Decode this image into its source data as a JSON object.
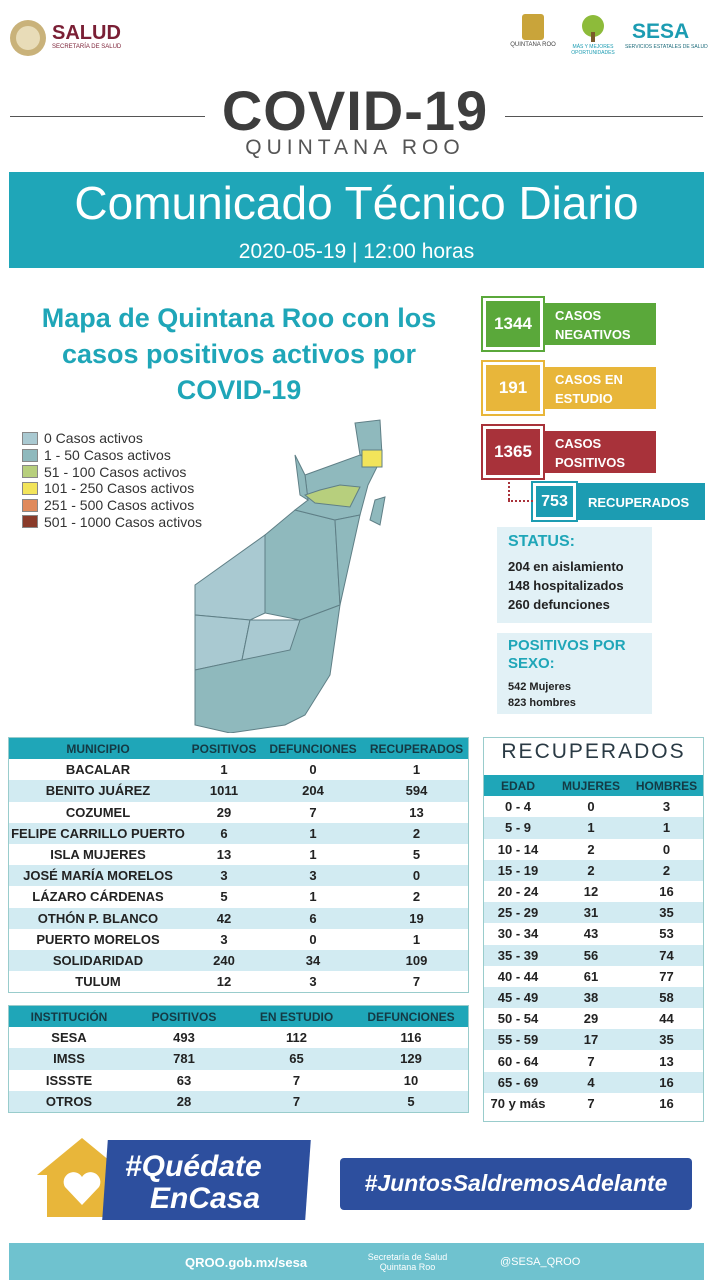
{
  "header": {
    "left_title": "SALUD",
    "left_subtitle": "SECRETARÍA DE SALUD",
    "logo1": "QUINTANA ROO",
    "logo2": "MÁS Y MEJORES OPORTUNIDADES",
    "logo3_title": "SESA",
    "logo3_subtitle": "SERVICIOS ESTATALES DE SALUD"
  },
  "title": "COVID-19",
  "subtitle": "QUINTANA ROO",
  "banner": {
    "title": "Comunicado Técnico Diario",
    "date": "2020-05-19 | 12:00 horas"
  },
  "map": {
    "title": "Mapa de Quintana Roo con los casos positivos activos por COVID-19",
    "legend": [
      {
        "label": "0 Casos activos",
        "color": "#a9c9d1"
      },
      {
        "label": "1 - 50 Casos activos",
        "color": "#8fb9bd"
      },
      {
        "label": "51 - 100 Casos activos",
        "color": "#b7cf7d"
      },
      {
        "label": "101 - 250 Casos activos",
        "color": "#f2e45a"
      },
      {
        "label": "251 - 500 Casos activos",
        "color": "#e08a5c"
      },
      {
        "label": "501 - 1000 Casos activos",
        "color": "#8a3b2a"
      }
    ]
  },
  "stats": [
    {
      "value": 1344,
      "label": "CASOS NEGATIVOS",
      "color": "#5aa83a"
    },
    {
      "value": 191,
      "label": "CASOS EN ESTUDIO",
      "color": "#e8b63a"
    },
    {
      "value": 1365,
      "label": "CASOS POSITIVOS",
      "color": "#a8323a"
    },
    {
      "value": 753,
      "label": "RECUPERADOS",
      "color": "#1c9cb2"
    }
  ],
  "status": {
    "title": "STATUS:",
    "items": [
      "204 en aislamiento",
      "148 hospitalizados",
      "260 defunciones"
    ]
  },
  "sex": {
    "title": "POSITIVOS POR SEXO:",
    "items": [
      "542 Mujeres",
      "823 hombres"
    ]
  },
  "municipios": {
    "header": [
      "MUNICIPIO",
      "POSITIVOS",
      "DEFUNCIONES",
      "RECUPERADOS"
    ],
    "rows": [
      [
        "BACALAR",
        1,
        0,
        1
      ],
      [
        "BENITO JUÁREZ",
        1011,
        204,
        594
      ],
      [
        "COZUMEL",
        29,
        7,
        13
      ],
      [
        "FELIPE CARRILLO PUERTO",
        6,
        1,
        2
      ],
      [
        "ISLA MUJERES",
        13,
        1,
        5
      ],
      [
        "JOSÉ MARÍA MORELOS",
        3,
        3,
        0
      ],
      [
        "LÁZARO CÁRDENAS",
        5,
        1,
        2
      ],
      [
        "OTHÓN P. BLANCO",
        42,
        6,
        19
      ],
      [
        "PUERTO MORELOS",
        3,
        0,
        1
      ],
      [
        "SOLIDARIDAD",
        240,
        34,
        109
      ],
      [
        "TULUM",
        12,
        3,
        7
      ]
    ]
  },
  "instituciones": {
    "header": [
      "INSTITUCIÓN",
      "POSITIVOS",
      "EN ESTUDIO",
      "DEFUNCIONES"
    ],
    "rows": [
      [
        "SESA",
        493,
        112,
        116
      ],
      [
        "IMSS",
        781,
        65,
        129
      ],
      [
        "ISSSTE",
        63,
        7,
        10
      ],
      [
        "OTROS",
        28,
        7,
        5
      ]
    ]
  },
  "recuperados": {
    "title": "RECUPERADOS",
    "header": [
      "EDAD",
      "MUJERES",
      "HOMBRES"
    ],
    "rows": [
      [
        "0 - 4",
        0,
        3
      ],
      [
        "5 - 9",
        1,
        1
      ],
      [
        "10 - 14",
        2,
        0
      ],
      [
        "15 - 19",
        2,
        2
      ],
      [
        "20 - 24",
        12,
        16
      ],
      [
        "25 - 29",
        31,
        35
      ],
      [
        "30 - 34",
        43,
        53
      ],
      [
        "35 - 39",
        56,
        74
      ],
      [
        "40 - 44",
        61,
        77
      ],
      [
        "45 - 49",
        38,
        58
      ],
      [
        "50 - 54",
        29,
        44
      ],
      [
        "55 - 59",
        17,
        35
      ],
      [
        "60 - 64",
        7,
        13
      ],
      [
        "65 - 69",
        4,
        16
      ],
      [
        "70 y más",
        7,
        16
      ]
    ]
  },
  "footer": {
    "tag1a": "#Quédate",
    "tag1b": "EnCasa",
    "tag2": "#JuntosSaldremosAdelante",
    "web": "QROO.gob.mx/sesa",
    "facebook": "Secretaría de Salud Quintana Roo",
    "twitter": "@SESA_QROO"
  }
}
